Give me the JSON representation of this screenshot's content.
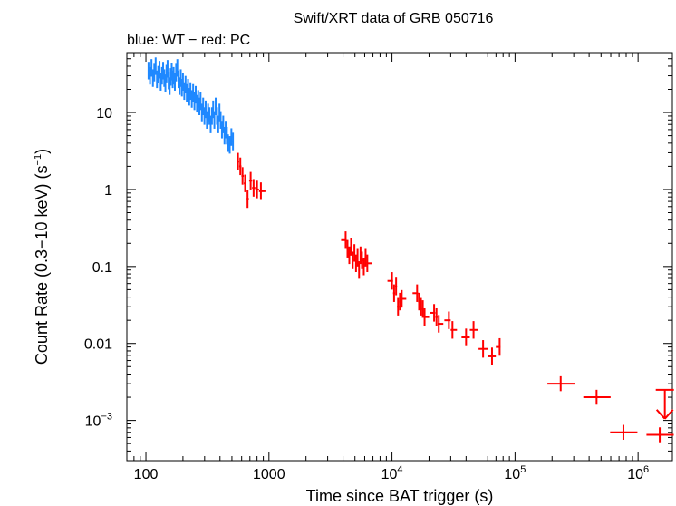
{
  "chart_data": {
    "type": "scatter",
    "title": "Swift/XRT data of GRB 050716",
    "subtitle": "blue: WT − red: PC",
    "xlabel": "Time since BAT trigger (s)",
    "ylabel_main": "Count Rate (0.3−10 keV) (s",
    "ylabel_sup": "−1",
    "ylabel_tail": ")",
    "x_scale": "log",
    "y_scale": "log",
    "xlim": [
      70,
      1900000
    ],
    "ylim": [
      0.0003,
      60
    ],
    "grid": false,
    "x_ticks": [
      {
        "value": 100,
        "label": "100"
      },
      {
        "value": 1000,
        "label": "1000"
      },
      {
        "value": 10000,
        "base": "10",
        "exp": "4"
      },
      {
        "value": 100000,
        "base": "10",
        "exp": "5"
      },
      {
        "value": 1000000,
        "base": "10",
        "exp": "6"
      }
    ],
    "y_ticks": [
      {
        "value": 10,
        "label": "10"
      },
      {
        "value": 1,
        "label": "1"
      },
      {
        "value": 0.1,
        "label": "0.1"
      },
      {
        "value": 0.01,
        "label": "0.01"
      },
      {
        "value": 0.001,
        "base": "10",
        "exp": "−3"
      }
    ],
    "series": [
      {
        "color": "#1e88ff",
        "points": [
          [
            105,
            35
          ],
          [
            108,
            30
          ],
          [
            111,
            38
          ],
          [
            114,
            28
          ],
          [
            117,
            33
          ],
          [
            120,
            40
          ],
          [
            123,
            27
          ],
          [
            126,
            31
          ],
          [
            129,
            36
          ],
          [
            132,
            25
          ],
          [
            135,
            30
          ],
          [
            138,
            35
          ],
          [
            141,
            28
          ],
          [
            144,
            24
          ],
          [
            147,
            32
          ],
          [
            150,
            37
          ],
          [
            153,
            26
          ],
          [
            156,
            22
          ],
          [
            159,
            29
          ],
          [
            162,
            34
          ],
          [
            165,
            27
          ],
          [
            168,
            30
          ],
          [
            172,
            25
          ],
          [
            176,
            33
          ],
          [
            180,
            38
          ],
          [
            184,
            27
          ],
          [
            188,
            22
          ],
          [
            192,
            28
          ],
          [
            196,
            21
          ],
          [
            200,
            25
          ],
          [
            205,
            19
          ],
          [
            210,
            23
          ],
          [
            215,
            18
          ],
          [
            220,
            21
          ],
          [
            225,
            16
          ],
          [
            230,
            19
          ],
          [
            236,
            15
          ],
          [
            242,
            18
          ],
          [
            248,
            14
          ],
          [
            254,
            17
          ],
          [
            260,
            13
          ],
          [
            266,
            15
          ],
          [
            272,
            12
          ],
          [
            278,
            14
          ],
          [
            285,
            10
          ],
          [
            292,
            12
          ],
          [
            299,
            9
          ],
          [
            306,
            11
          ],
          [
            313,
            8
          ],
          [
            320,
            10
          ],
          [
            328,
            9
          ],
          [
            336,
            7
          ],
          [
            344,
            9
          ],
          [
            352,
            11
          ],
          [
            360,
            8
          ],
          [
            369,
            12
          ],
          [
            378,
            9
          ],
          [
            387,
            7
          ],
          [
            396,
            10
          ],
          [
            405,
            8
          ],
          [
            415,
            6
          ],
          [
            425,
            7
          ],
          [
            435,
            5
          ],
          [
            445,
            6
          ],
          [
            455,
            5
          ],
          [
            465,
            4
          ],
          [
            480,
            3.8
          ],
          [
            495,
            4.8
          ],
          [
            510,
            4.2
          ]
        ],
        "rel_err": 0.3
      },
      {
        "color": "#ff0000",
        "points": [
          [
            560,
            2.3
          ],
          [
            585,
            2.0
          ],
          [
            610,
            1.5
          ],
          [
            640,
            1.2
          ],
          [
            670,
            0.75
          ],
          [
            710,
            1.3
          ],
          [
            750,
            1.05
          ],
          [
            800,
            1.0
          ],
          [
            860,
            0.95
          ],
          [
            4200,
            0.22
          ],
          [
            4350,
            0.17
          ],
          [
            4500,
            0.14
          ],
          [
            4650,
            0.18
          ],
          [
            4800,
            0.12
          ],
          [
            4950,
            0.15
          ],
          [
            5100,
            0.11
          ],
          [
            5250,
            0.13
          ],
          [
            5400,
            0.09
          ],
          [
            5550,
            0.14
          ],
          [
            5700,
            0.12
          ],
          [
            5900,
            0.1
          ],
          [
            6100,
            0.13
          ],
          [
            6300,
            0.11
          ],
          [
            10000,
            0.065
          ],
          [
            10400,
            0.045
          ],
          [
            10800,
            0.055
          ],
          [
            11200,
            0.03
          ],
          [
            11600,
            0.035
          ],
          [
            12000,
            0.038
          ],
          [
            16000,
            0.045
          ],
          [
            16600,
            0.035
          ],
          [
            17200,
            0.03
          ],
          [
            17800,
            0.028
          ],
          [
            18400,
            0.022
          ],
          [
            22000,
            0.025
          ],
          [
            23000,
            0.022
          ],
          [
            24000,
            0.018
          ],
          [
            29000,
            0.02
          ],
          [
            31000,
            0.015
          ],
          [
            40000,
            0.012
          ],
          [
            46000,
            0.015
          ],
          [
            55000,
            0.0085
          ],
          [
            65000,
            0.0068
          ],
          [
            75000,
            0.009
          ]
        ],
        "rel_err": 0.3
      },
      {
        "color": "#ff0000",
        "points": [
          [
            235000,
            0.003
          ],
          [
            460000,
            0.002
          ],
          [
            760000,
            0.0007
          ],
          [
            1500000,
            0.00065
          ]
        ],
        "rel_err": 0.25,
        "wide": true
      }
    ],
    "upper_limit": {
      "x": 1650000,
      "y": 0.0025,
      "color": "#ff0000"
    }
  }
}
